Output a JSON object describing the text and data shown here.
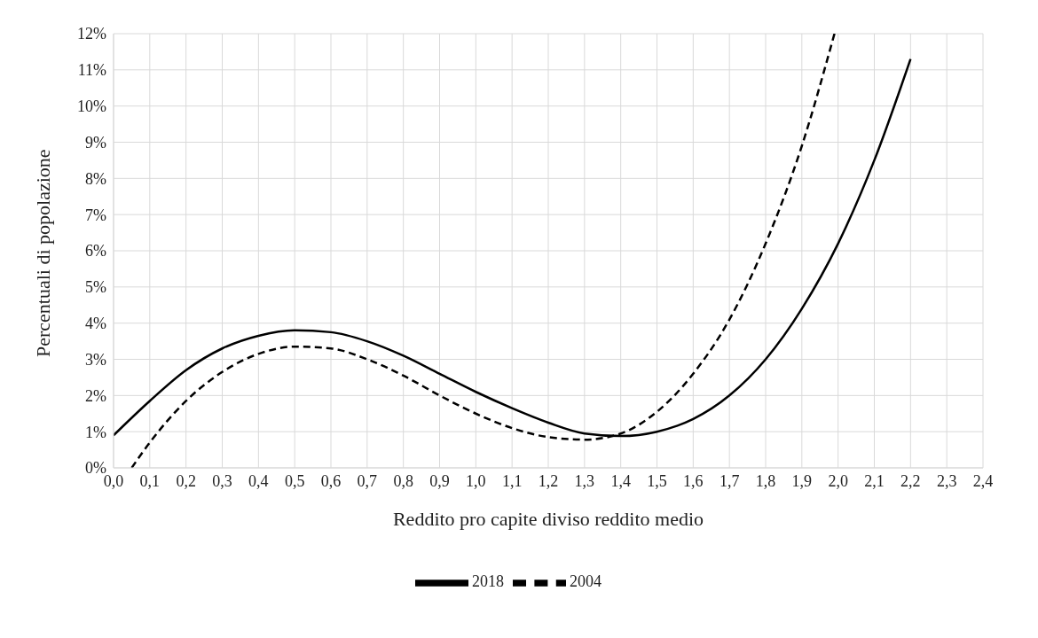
{
  "chart_data": {
    "type": "line",
    "xlabel": "Reddito pro capite diviso reddito medio",
    "ylabel": "Percentuali di popolazione",
    "series": [
      {
        "name": "2018",
        "color": "#000000",
        "line_style": "solid",
        "x": [
          0.0,
          0.1,
          0.2,
          0.3,
          0.4,
          0.5,
          0.6,
          0.7,
          0.8,
          0.9,
          1.0,
          1.1,
          1.2,
          1.3,
          1.4,
          1.5,
          1.6,
          1.7,
          1.8,
          1.9,
          2.0,
          2.1,
          2.2
        ],
        "values": [
          0.9,
          1.85,
          2.7,
          3.3,
          3.65,
          3.8,
          3.75,
          3.5,
          3.1,
          2.6,
          2.1,
          1.65,
          1.25,
          0.95,
          0.88,
          1.0,
          1.35,
          2.0,
          3.0,
          4.4,
          6.2,
          8.5,
          11.3
        ]
      },
      {
        "name": "2004",
        "color": "#000000",
        "line_style": "dashed",
        "x": [
          0.05,
          0.1,
          0.2,
          0.3,
          0.4,
          0.5,
          0.6,
          0.7,
          0.8,
          0.9,
          1.0,
          1.1,
          1.2,
          1.3,
          1.4,
          1.5,
          1.6,
          1.7,
          1.8,
          1.9,
          1.99
        ],
        "values": [
          0.0,
          0.7,
          1.85,
          2.65,
          3.15,
          3.35,
          3.3,
          3.0,
          2.55,
          2.0,
          1.5,
          1.1,
          0.85,
          0.78,
          0.95,
          1.55,
          2.6,
          4.1,
          6.2,
          8.9,
          12.0
        ]
      }
    ],
    "xlim": [
      0,
      2.4
    ],
    "xticks": [
      {
        "value": 0,
        "label": "0,0"
      },
      {
        "value": 0.1,
        "label": "0,1"
      },
      {
        "value": 0.2,
        "label": "0,2"
      },
      {
        "value": 0.3,
        "label": "0,3"
      },
      {
        "value": 0.4,
        "label": "0,4"
      },
      {
        "value": 0.5,
        "label": "0,5"
      },
      {
        "value": 0.6,
        "label": "0,6"
      },
      {
        "value": 0.7,
        "label": "0,7"
      },
      {
        "value": 0.8,
        "label": "0,8"
      },
      {
        "value": 0.9,
        "label": "0,9"
      },
      {
        "value": 1.0,
        "label": "1,0"
      },
      {
        "value": 1.1,
        "label": "1,1"
      },
      {
        "value": 1.2,
        "label": "1,2"
      },
      {
        "value": 1.3,
        "label": "1,3"
      },
      {
        "value": 1.4,
        "label": "1,4"
      },
      {
        "value": 1.5,
        "label": "1,5"
      },
      {
        "value": 1.6,
        "label": "1,6"
      },
      {
        "value": 1.7,
        "label": "1,7"
      },
      {
        "value": 1.8,
        "label": "1,8"
      },
      {
        "value": 1.9,
        "label": "1,9"
      },
      {
        "value": 2.0,
        "label": "2,0"
      },
      {
        "value": 2.1,
        "label": "2,1"
      },
      {
        "value": 2.2,
        "label": "2,2"
      },
      {
        "value": 2.3,
        "label": "2,3"
      },
      {
        "value": 2.4,
        "label": "2,4"
      }
    ],
    "ylim": [
      0,
      12
    ],
    "yticks": [
      {
        "value": 0,
        "label": "0%"
      },
      {
        "value": 1,
        "label": "1%"
      },
      {
        "value": 2,
        "label": "2%"
      },
      {
        "value": 3,
        "label": "3%"
      },
      {
        "value": 4,
        "label": "4%"
      },
      {
        "value": 5,
        "label": "5%"
      },
      {
        "value": 6,
        "label": "6%"
      },
      {
        "value": 7,
        "label": "7%"
      },
      {
        "value": 8,
        "label": "8%"
      },
      {
        "value": 9,
        "label": "9%"
      },
      {
        "value": 10,
        "label": "10%"
      },
      {
        "value": 11,
        "label": "11%"
      },
      {
        "value": 12,
        "label": "12%"
      }
    ],
    "grid": true,
    "legend": "bottom",
    "marker": "none"
  }
}
